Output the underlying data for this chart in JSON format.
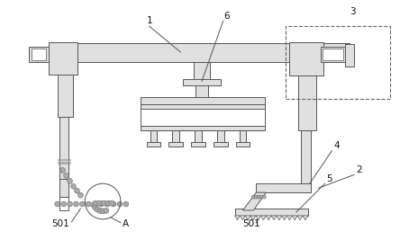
{
  "bg_color": "#ffffff",
  "line_color": "#555555",
  "gray_fill": "#e0e0e0",
  "dashed_color": "#666666",
  "figsize": [
    4.44,
    2.67
  ],
  "dpi": 100
}
